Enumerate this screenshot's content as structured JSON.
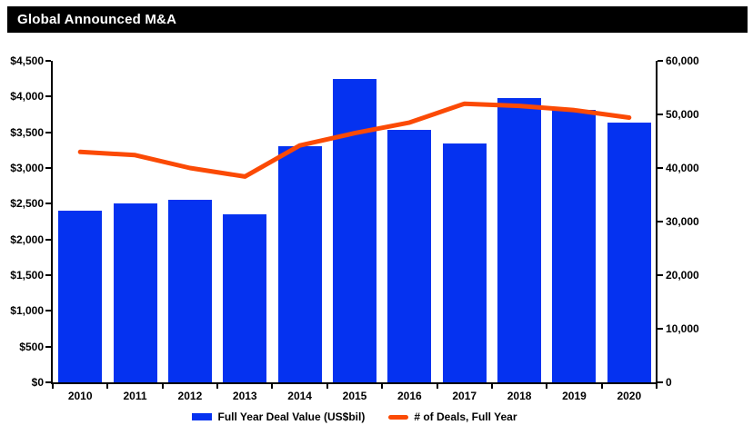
{
  "header": {
    "title": "Global Announced M&A"
  },
  "colors": {
    "background": "#ffffff",
    "title_bg": "#000000",
    "title_text": "#ffffff",
    "bar": "#0532f0",
    "line": "#fb4a05",
    "axis": "#000000",
    "label_text": "#000000"
  },
  "chart_data": {
    "type": "combo-bar-line",
    "title": "Global Announced M&A",
    "categories": [
      "2010",
      "2011",
      "2012",
      "2013",
      "2014",
      "2015",
      "2016",
      "2017",
      "2018",
      "2019",
      "2020"
    ],
    "series": [
      {
        "name": "Full Year Deal Value (US$bil)",
        "type": "bar",
        "axis": "left",
        "values": [
          2400,
          2500,
          2550,
          2350,
          3300,
          4250,
          3530,
          3340,
          3980,
          3810,
          3640
        ]
      },
      {
        "name": "# of Deals, Full Year",
        "type": "line",
        "axis": "right",
        "values": [
          43000,
          42400,
          40000,
          38400,
          44200,
          46500,
          48500,
          52000,
          51600,
          50800,
          49400
        ]
      }
    ],
    "left_axis": {
      "min": 0,
      "max": 4500,
      "step": 500,
      "tick_labels": [
        "$0",
        "$500",
        "$1,000",
        "$1,500",
        "$2,000",
        "$2,500",
        "$3,000",
        "$3,500",
        "$4,000",
        "$4,500"
      ]
    },
    "right_axis": {
      "min": 0,
      "max": 60000,
      "step": 10000,
      "tick_labels": [
        "0",
        "10,000",
        "20,000",
        "30,000",
        "40,000",
        "50,000",
        "60,000"
      ]
    },
    "grid": false,
    "legend_position": "bottom"
  }
}
